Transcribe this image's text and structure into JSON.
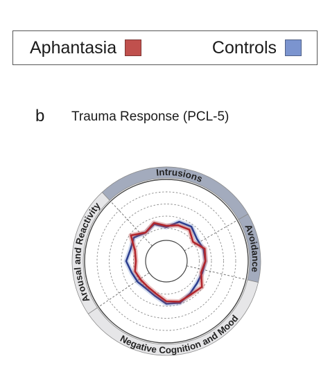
{
  "legend": {
    "items": [
      {
        "label": "Aphantasia",
        "color": "#c0504d"
      },
      {
        "label": "Controls",
        "color": "#7b94cf"
      }
    ]
  },
  "panel": {
    "letter": "b",
    "title": "Trauma Response (PCL-5)"
  },
  "chart_data": {
    "type": "radar",
    "title": "Trauma Response (PCL-5)",
    "domains": [
      {
        "name": "Intrusions",
        "highlighted": true
      },
      {
        "name": "Avoidance",
        "highlighted": true
      },
      {
        "name": "Negative Cognition and Mood",
        "highlighted": false
      },
      {
        "name": "Arousal and Reactivity",
        "highlighted": false
      }
    ],
    "item_count": 20,
    "rlim": [
      0,
      4
    ],
    "rings": [
      1,
      2,
      3,
      4
    ],
    "series": [
      {
        "name": "Aphantasia",
        "color": "#c0504d",
        "values": [
          1.2,
          1.4,
          1.5,
          1.0,
          1.6,
          1.5,
          1.3,
          1.9,
          1.7,
          1.8,
          1.6,
          1.1,
          0.9,
          0.9,
          1.0,
          0.8,
          1.0,
          1.9,
          1.2,
          1.6
        ]
      },
      {
        "name": "Controls",
        "color": "#7b94cf",
        "values": [
          1.1,
          1.7,
          1.8,
          1.4,
          1.5,
          1.5,
          1.4,
          1.4,
          1.6,
          1.9,
          1.8,
          1.3,
          1.1,
          1.2,
          1.3,
          1.6,
          1.4,
          1.6,
          1.2,
          1.5
        ]
      }
    ]
  }
}
